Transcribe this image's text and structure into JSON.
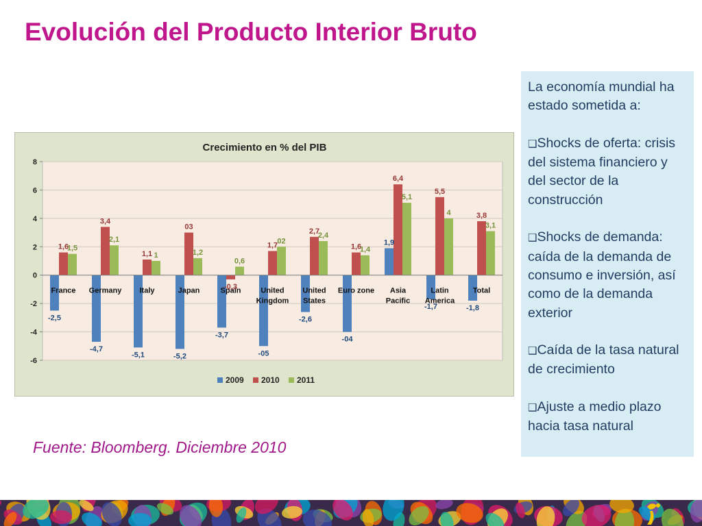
{
  "slide": {
    "title": "Evolución del Producto Interior Bruto",
    "source": "Fuente: Bloomberg. Diciembre 2010"
  },
  "side_box": {
    "intro": "La economía mundial ha estado sometida a:",
    "bullets": [
      "Shocks de oferta: crisis del sistema financiero y del sector de la construcción",
      "Shocks de demanda: caída de la demanda de consumo e inversión, así como de la demanda exterior",
      "Caída de la tasa natural de crecimiento",
      "Ajuste a medio plazo hacia tasa natural"
    ],
    "bullet_icon": "checkbox-bullet-icon"
  },
  "colors": {
    "title": "#c0168c",
    "series_2009": "#4f81bd",
    "series_2010": "#c0504d",
    "series_2011": "#9bbb59",
    "label_2009": "#1f497d",
    "label_2010": "#953735",
    "label_2011": "#76923c",
    "plot_background": "#f8ece2",
    "chart_frame": "#dfe4cc",
    "side_box": "#d7ecf3"
  },
  "chart_data": {
    "type": "bar",
    "title": "Crecimiento en % del PIB",
    "categories": [
      "France",
      "Germany",
      "Italy",
      "Japan",
      "Spain",
      "United Kingdom",
      "United States",
      "Euro zone",
      "Asia Pacific",
      "Latin America",
      "Total"
    ],
    "category_lines": [
      [
        "France"
      ],
      [
        "Germany"
      ],
      [
        "Italy"
      ],
      [
        "Japan"
      ],
      [
        "Spain"
      ],
      [
        "United",
        "Kingdom"
      ],
      [
        "United",
        "States"
      ],
      [
        "Euro zone"
      ],
      [
        "Asia",
        "Pacific"
      ],
      [
        "Latin",
        "America"
      ],
      [
        "Total"
      ]
    ],
    "series": [
      {
        "name": "2009",
        "values": [
          -2.5,
          -4.7,
          -5.1,
          -5.2,
          -3.7,
          -5.0,
          -2.6,
          -4.0,
          1.9,
          -1.7,
          -1.8
        ],
        "labels": [
          "-2,5",
          "-4,7",
          "-5,1",
          "-5,2",
          "-3,7",
          "-05",
          "-2,6",
          "-04",
          "1,9",
          "-1,7",
          "-1,8"
        ]
      },
      {
        "name": "2010",
        "values": [
          1.6,
          3.4,
          1.1,
          3.0,
          -0.3,
          1.7,
          2.7,
          1.6,
          6.4,
          5.5,
          3.8
        ],
        "labels": [
          "1,6",
          "3,4",
          "1,1",
          "03",
          "-0,3",
          "1,7",
          "2,7",
          "1,6",
          "6,4",
          "5,5",
          "3,8"
        ]
      },
      {
        "name": "2011",
        "values": [
          1.5,
          2.1,
          1.0,
          1.2,
          0.6,
          2.0,
          2.4,
          1.4,
          5.1,
          4.0,
          3.1
        ],
        "labels": [
          "1,5",
          "2,1",
          "1",
          "1,2",
          "0,6",
          "02",
          "2,4",
          "1,4",
          "5,1",
          "4",
          "3,1"
        ]
      }
    ],
    "ylim": [
      -6,
      8
    ],
    "yticks": [
      -6,
      -4,
      -2,
      0,
      2,
      4,
      6,
      8
    ],
    "grid": true,
    "legend": "bottom"
  }
}
